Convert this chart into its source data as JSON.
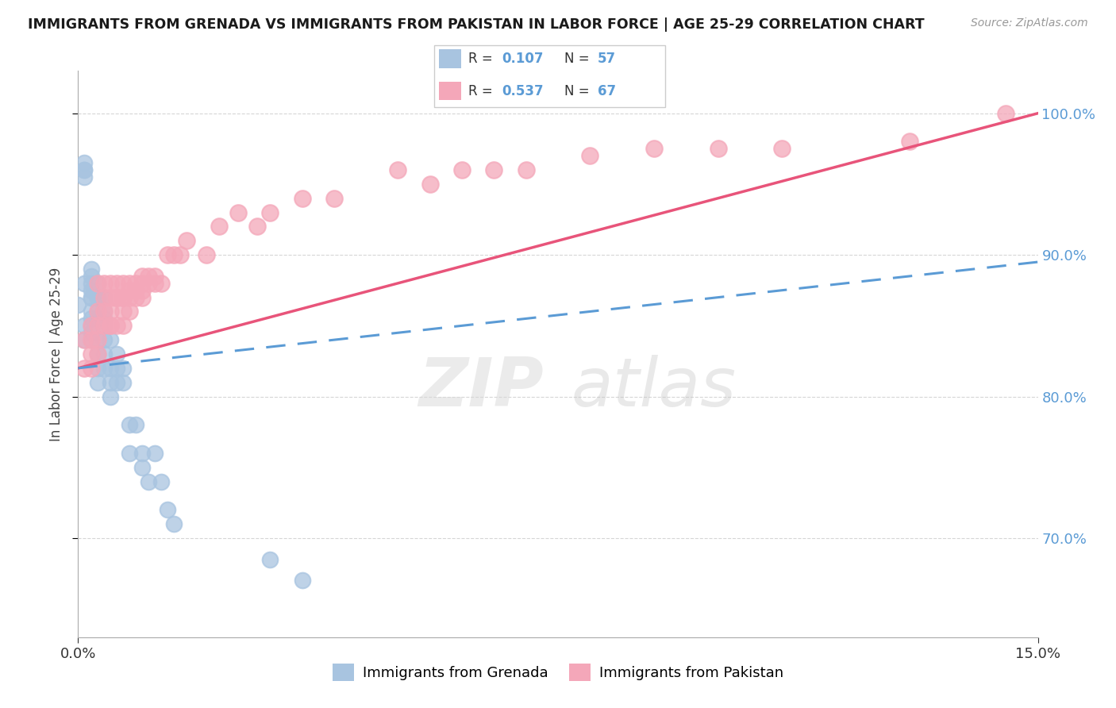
{
  "title": "IMMIGRANTS FROM GRENADA VS IMMIGRANTS FROM PAKISTAN IN LABOR FORCE | AGE 25-29 CORRELATION CHART",
  "source": "Source: ZipAtlas.com",
  "ylabel": "In Labor Force | Age 25-29",
  "legend_grenada": "Immigrants from Grenada",
  "legend_pakistan": "Immigrants from Pakistan",
  "R_grenada": 0.107,
  "N_grenada": 57,
  "R_pakistan": 0.537,
  "N_pakistan": 67,
  "xlim": [
    0.0,
    0.15
  ],
  "ylim": [
    0.63,
    1.03
  ],
  "yticks": [
    0.7,
    0.8,
    0.9,
    1.0
  ],
  "color_grenada": "#a8c4e0",
  "color_pakistan": "#f4a7b9",
  "color_grenada_line": "#5b9bd5",
  "color_pakistan_line": "#e8547a",
  "color_axis_blue": "#5b9bd5",
  "grenada_x": [
    0.0,
    0.001,
    0.001,
    0.001,
    0.001,
    0.001,
    0.001,
    0.001,
    0.002,
    0.002,
    0.002,
    0.002,
    0.002,
    0.002,
    0.002,
    0.002,
    0.002,
    0.002,
    0.002,
    0.003,
    0.003,
    0.003,
    0.003,
    0.003,
    0.003,
    0.003,
    0.003,
    0.003,
    0.004,
    0.004,
    0.004,
    0.004,
    0.004,
    0.004,
    0.004,
    0.004,
    0.005,
    0.005,
    0.005,
    0.005,
    0.006,
    0.006,
    0.006,
    0.007,
    0.007,
    0.008,
    0.008,
    0.009,
    0.01,
    0.01,
    0.011,
    0.012,
    0.013,
    0.014,
    0.015,
    0.03,
    0.035
  ],
  "grenada_y": [
    0.865,
    0.955,
    0.96,
    0.96,
    0.965,
    0.88,
    0.84,
    0.85,
    0.87,
    0.875,
    0.88,
    0.885,
    0.89,
    0.87,
    0.855,
    0.84,
    0.845,
    0.85,
    0.86,
    0.87,
    0.855,
    0.84,
    0.83,
    0.82,
    0.81,
    0.86,
    0.87,
    0.88,
    0.87,
    0.855,
    0.84,
    0.83,
    0.82,
    0.86,
    0.87,
    0.85,
    0.84,
    0.82,
    0.81,
    0.8,
    0.83,
    0.82,
    0.81,
    0.82,
    0.81,
    0.78,
    0.76,
    0.78,
    0.76,
    0.75,
    0.74,
    0.76,
    0.74,
    0.72,
    0.71,
    0.685,
    0.67
  ],
  "pakistan_x": [
    0.001,
    0.001,
    0.002,
    0.002,
    0.002,
    0.002,
    0.003,
    0.003,
    0.003,
    0.003,
    0.003,
    0.004,
    0.004,
    0.004,
    0.004,
    0.005,
    0.005,
    0.005,
    0.005,
    0.005,
    0.006,
    0.006,
    0.006,
    0.006,
    0.007,
    0.007,
    0.007,
    0.007,
    0.007,
    0.008,
    0.008,
    0.008,
    0.008,
    0.009,
    0.009,
    0.009,
    0.01,
    0.01,
    0.01,
    0.01,
    0.011,
    0.011,
    0.012,
    0.012,
    0.013,
    0.014,
    0.015,
    0.016,
    0.017,
    0.02,
    0.022,
    0.025,
    0.028,
    0.03,
    0.035,
    0.04,
    0.05,
    0.055,
    0.06,
    0.065,
    0.07,
    0.08,
    0.09,
    0.1,
    0.11,
    0.13,
    0.145
  ],
  "pakistan_y": [
    0.82,
    0.84,
    0.83,
    0.84,
    0.85,
    0.82,
    0.84,
    0.85,
    0.86,
    0.88,
    0.83,
    0.85,
    0.86,
    0.87,
    0.88,
    0.85,
    0.86,
    0.87,
    0.88,
    0.85,
    0.87,
    0.88,
    0.85,
    0.87,
    0.87,
    0.88,
    0.85,
    0.86,
    0.87,
    0.87,
    0.875,
    0.88,
    0.86,
    0.87,
    0.875,
    0.88,
    0.87,
    0.875,
    0.88,
    0.885,
    0.88,
    0.885,
    0.88,
    0.885,
    0.88,
    0.9,
    0.9,
    0.9,
    0.91,
    0.9,
    0.92,
    0.93,
    0.92,
    0.93,
    0.94,
    0.94,
    0.96,
    0.95,
    0.96,
    0.96,
    0.96,
    0.97,
    0.975,
    0.975,
    0.975,
    0.98,
    1.0
  ]
}
